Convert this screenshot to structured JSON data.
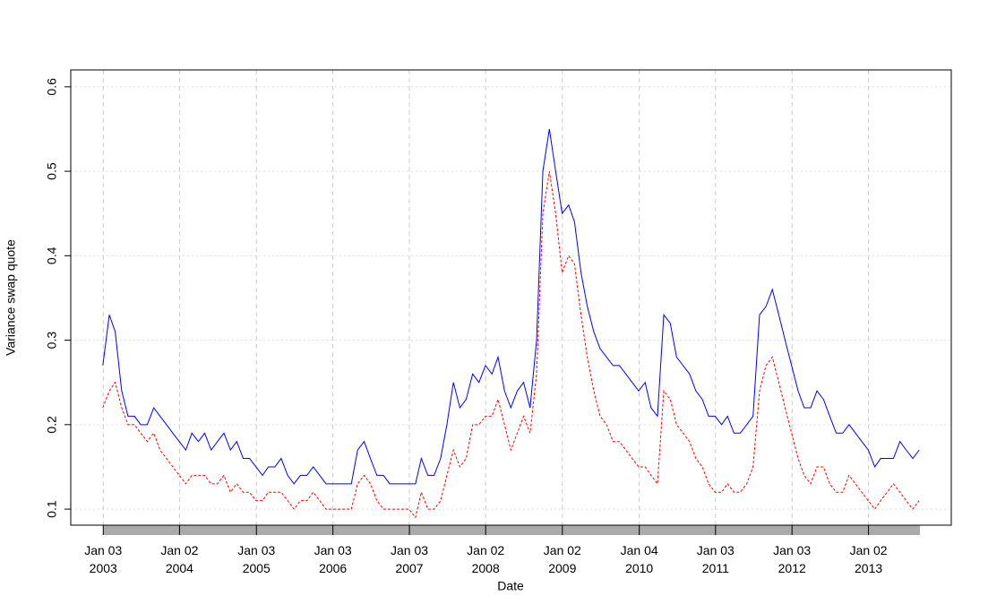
{
  "chart_data": {
    "type": "line",
    "x_label": "Date",
    "y_label": "Variance swap quote",
    "x": [
      "2003-01",
      "2003-02",
      "2003-03",
      "2003-04",
      "2003-05",
      "2003-06",
      "2003-07",
      "2003-08",
      "2003-09",
      "2003-10",
      "2003-11",
      "2003-12",
      "2004-01",
      "2004-02",
      "2004-03",
      "2004-04",
      "2004-05",
      "2004-06",
      "2004-07",
      "2004-08",
      "2004-09",
      "2004-10",
      "2004-11",
      "2004-12",
      "2005-01",
      "2005-02",
      "2005-03",
      "2005-04",
      "2005-05",
      "2005-06",
      "2005-07",
      "2005-08",
      "2005-09",
      "2005-10",
      "2005-11",
      "2005-12",
      "2006-01",
      "2006-02",
      "2006-03",
      "2006-04",
      "2006-05",
      "2006-06",
      "2006-07",
      "2006-08",
      "2006-09",
      "2006-10",
      "2006-11",
      "2006-12",
      "2007-01",
      "2007-02",
      "2007-03",
      "2007-04",
      "2007-05",
      "2007-06",
      "2007-07",
      "2007-08",
      "2007-09",
      "2007-10",
      "2007-11",
      "2007-12",
      "2008-01",
      "2008-02",
      "2008-03",
      "2008-04",
      "2008-05",
      "2008-06",
      "2008-07",
      "2008-08",
      "2008-09",
      "2008-10",
      "2008-11",
      "2008-12",
      "2009-01",
      "2009-02",
      "2009-03",
      "2009-04",
      "2009-05",
      "2009-06",
      "2009-07",
      "2009-08",
      "2009-09",
      "2009-10",
      "2009-11",
      "2009-12",
      "2010-01",
      "2010-02",
      "2010-03",
      "2010-04",
      "2010-05",
      "2010-06",
      "2010-07",
      "2010-08",
      "2010-09",
      "2010-10",
      "2010-11",
      "2010-12",
      "2011-01",
      "2011-02",
      "2011-03",
      "2011-04",
      "2011-05",
      "2011-06",
      "2011-07",
      "2011-08",
      "2011-09",
      "2011-10",
      "2011-11",
      "2011-12",
      "2012-01",
      "2012-02",
      "2012-03",
      "2012-04",
      "2012-05",
      "2012-06",
      "2012-07",
      "2012-08",
      "2012-09",
      "2012-10",
      "2012-11",
      "2012-12",
      "2013-01",
      "2013-02",
      "2013-03",
      "2013-04",
      "2013-05",
      "2013-06",
      "2013-07",
      "2013-08",
      "2013-09"
    ],
    "series": [
      {
        "color": "#0000ff",
        "dash": false,
        "values": [
          0.27,
          0.33,
          0.31,
          0.24,
          0.21,
          0.21,
          0.2,
          0.2,
          0.22,
          0.21,
          0.2,
          0.19,
          0.18,
          0.17,
          0.19,
          0.18,
          0.19,
          0.17,
          0.18,
          0.19,
          0.17,
          0.18,
          0.16,
          0.16,
          0.15,
          0.14,
          0.15,
          0.15,
          0.16,
          0.14,
          0.13,
          0.14,
          0.14,
          0.15,
          0.14,
          0.13,
          0.13,
          0.13,
          0.13,
          0.13,
          0.17,
          0.18,
          0.16,
          0.14,
          0.14,
          0.13,
          0.13,
          0.13,
          0.13,
          0.13,
          0.16,
          0.14,
          0.14,
          0.16,
          0.2,
          0.25,
          0.22,
          0.23,
          0.26,
          0.25,
          0.27,
          0.26,
          0.28,
          0.24,
          0.22,
          0.24,
          0.25,
          0.22,
          0.3,
          0.5,
          0.55,
          0.5,
          0.45,
          0.46,
          0.44,
          0.38,
          0.34,
          0.31,
          0.29,
          0.28,
          0.27,
          0.27,
          0.26,
          0.25,
          0.24,
          0.25,
          0.22,
          0.21,
          0.33,
          0.32,
          0.28,
          0.27,
          0.26,
          0.24,
          0.23,
          0.21,
          0.21,
          0.2,
          0.21,
          0.19,
          0.19,
          0.2,
          0.21,
          0.33,
          0.34,
          0.36,
          0.33,
          0.3,
          0.27,
          0.24,
          0.22,
          0.22,
          0.24,
          0.23,
          0.21,
          0.19,
          0.19,
          0.2,
          0.19,
          0.18,
          0.17,
          0.15,
          0.16,
          0.16,
          0.16,
          0.18,
          0.17,
          0.16,
          0.17
        ]
      },
      {
        "color": "#ff0000",
        "dash": true,
        "values": [
          0.22,
          0.24,
          0.25,
          0.22,
          0.2,
          0.2,
          0.19,
          0.18,
          0.19,
          0.17,
          0.16,
          0.15,
          0.14,
          0.13,
          0.14,
          0.14,
          0.14,
          0.13,
          0.13,
          0.14,
          0.12,
          0.13,
          0.12,
          0.12,
          0.11,
          0.11,
          0.12,
          0.12,
          0.12,
          0.11,
          0.1,
          0.11,
          0.11,
          0.12,
          0.11,
          0.1,
          0.1,
          0.1,
          0.1,
          0.1,
          0.13,
          0.14,
          0.13,
          0.11,
          0.1,
          0.1,
          0.1,
          0.1,
          0.1,
          0.09,
          0.12,
          0.1,
          0.1,
          0.11,
          0.14,
          0.17,
          0.15,
          0.16,
          0.2,
          0.2,
          0.21,
          0.21,
          0.23,
          0.2,
          0.17,
          0.19,
          0.21,
          0.19,
          0.26,
          0.45,
          0.5,
          0.45,
          0.38,
          0.4,
          0.39,
          0.33,
          0.28,
          0.24,
          0.21,
          0.2,
          0.18,
          0.18,
          0.17,
          0.16,
          0.15,
          0.15,
          0.14,
          0.13,
          0.24,
          0.23,
          0.2,
          0.19,
          0.18,
          0.16,
          0.15,
          0.13,
          0.12,
          0.12,
          0.13,
          0.12,
          0.12,
          0.13,
          0.15,
          0.24,
          0.27,
          0.28,
          0.25,
          0.22,
          0.19,
          0.16,
          0.14,
          0.13,
          0.15,
          0.15,
          0.13,
          0.12,
          0.12,
          0.14,
          0.13,
          0.12,
          0.11,
          0.1,
          0.11,
          0.12,
          0.13,
          0.12,
          0.11,
          0.1,
          0.11
        ]
      }
    ],
    "xlim": [
      "2002-08-01",
      "2014-02-01"
    ],
    "xticks": [
      {
        "value": "2003-01-03",
        "label": "Jan 03\n2003"
      },
      {
        "value": "2004-01-02",
        "label": "Jan 02\n2004"
      },
      {
        "value": "2005-01-03",
        "label": "Jan 03\n2005"
      },
      {
        "value": "2006-01-03",
        "label": "Jan 03\n2006"
      },
      {
        "value": "2007-01-03",
        "label": "Jan 03\n2007"
      },
      {
        "value": "2008-01-02",
        "label": "Jan 02\n2008"
      },
      {
        "value": "2009-01-02",
        "label": "Jan 02\n2009"
      },
      {
        "value": "2010-01-04",
        "label": "Jan 04\n2010"
      },
      {
        "value": "2011-01-03",
        "label": "Jan 03\n2011"
      },
      {
        "value": "2012-01-03",
        "label": "Jan 03\n2012"
      },
      {
        "value": "2013-01-02",
        "label": "Jan 02\n2013"
      }
    ],
    "ylim": [
      0.081,
      0.62
    ],
    "yticks": [
      0.1,
      0.2,
      0.3,
      0.4,
      0.5,
      0.6
    ],
    "grid": true
  }
}
